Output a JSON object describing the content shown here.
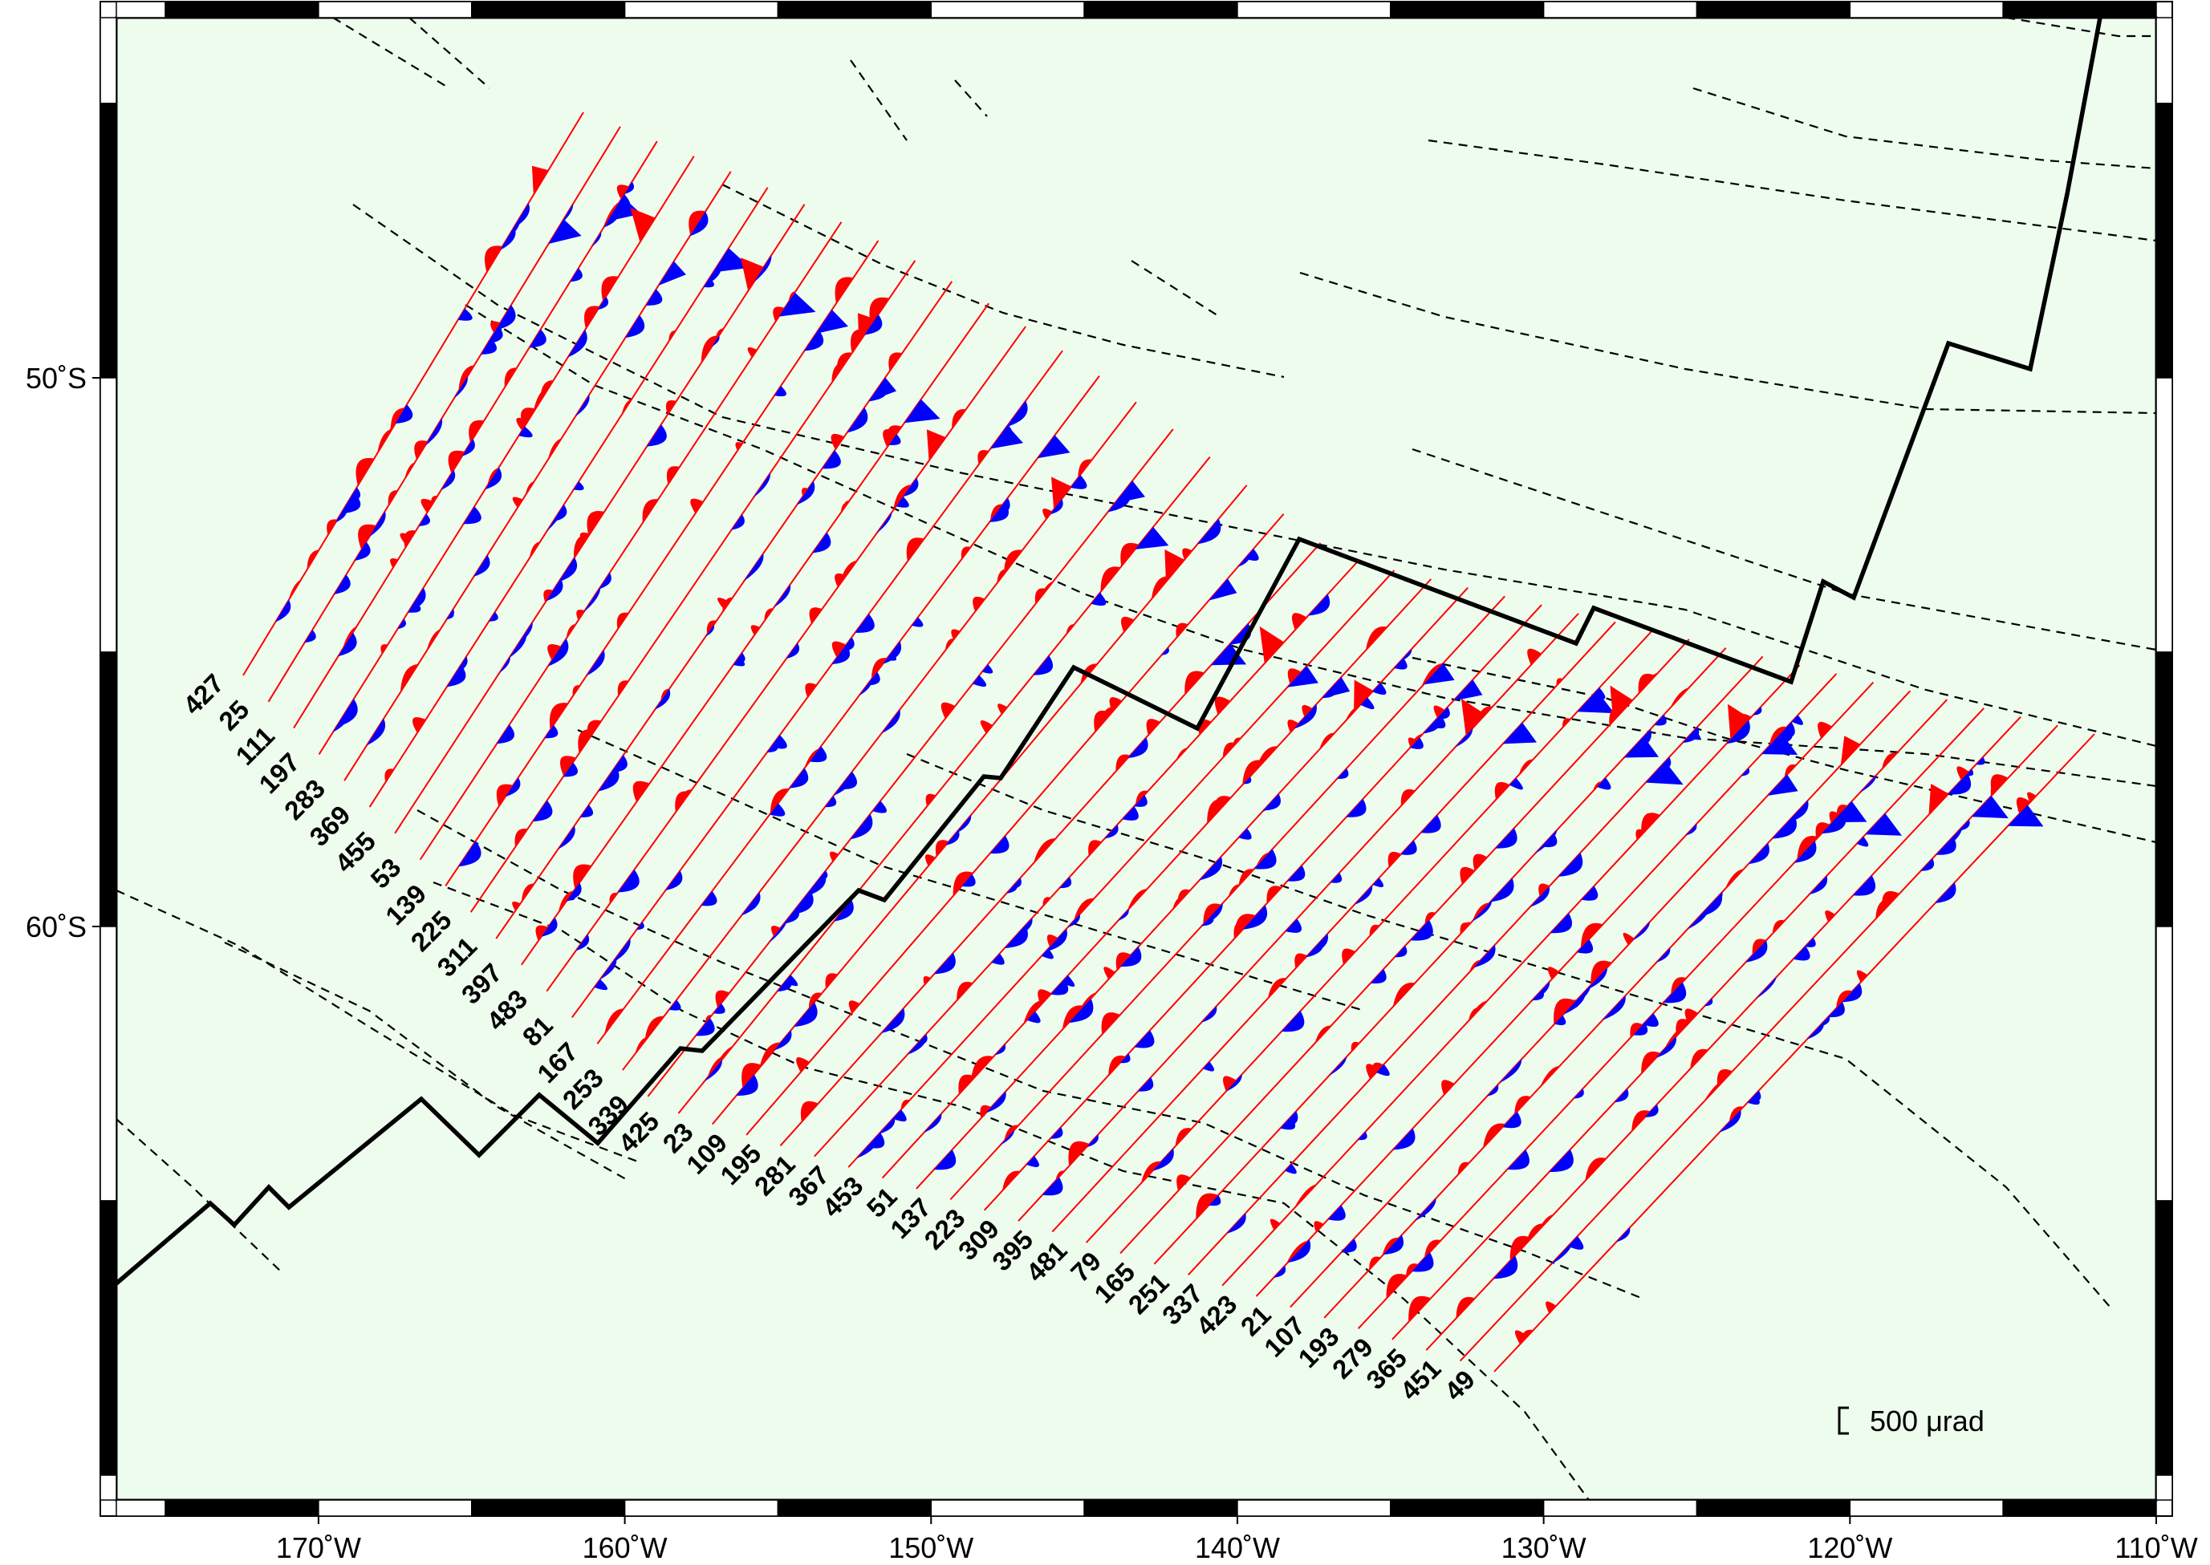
{
  "map": {
    "lon_min": -176.6,
    "lon_max": -110,
    "lat_top_edge": 43.7,
    "lat_bottom_edge": 70.8,
    "background_color": "#eefcee",
    "positive_color": "#ff0000",
    "negative_color": "#0000ff",
    "x_ticks": [
      {
        "value": -170,
        "label": "170˚W"
      },
      {
        "value": -160,
        "label": "160˚W"
      },
      {
        "value": -150,
        "label": "150˚W"
      },
      {
        "value": -140,
        "label": "140˚W"
      },
      {
        "value": -130,
        "label": "130˚W"
      },
      {
        "value": -120,
        "label": "120˚W"
      },
      {
        "value": -110,
        "label": "110˚W"
      }
    ],
    "y_ticks": [
      {
        "value": -50,
        "label": "50˚S"
      },
      {
        "value": -60,
        "label": "60˚S"
      }
    ],
    "scale_label": "500 μrad",
    "profile_labels": [
      "427",
      "25",
      "111",
      "197",
      "283",
      "369",
      "455",
      "53",
      "139",
      "225",
      "311",
      "397",
      "483",
      "81",
      "167",
      "253",
      "339",
      "425",
      "23",
      "109",
      "195",
      "281",
      "367",
      "453",
      "51",
      "137",
      "223",
      "309",
      "395",
      "481",
      "79",
      "165",
      "251",
      "337",
      "423",
      "21",
      "107",
      "193",
      "279",
      "365",
      "451",
      "49"
    ]
  }
}
